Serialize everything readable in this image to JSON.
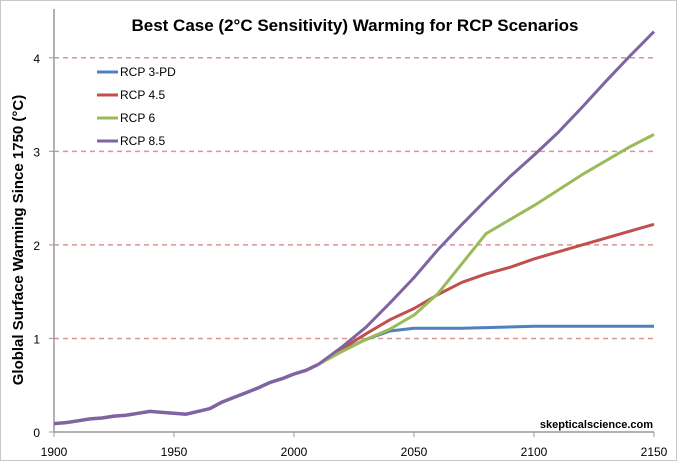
{
  "chart_data": {
    "type": "line",
    "title": "Best Case (2°C Sensitivity) Warming for RCP Scenarios",
    "xlabel": "",
    "ylabel": "Globlal Surface Warming Since 1750 (°C)",
    "xlim": [
      1900,
      2150
    ],
    "ylim": [
      0,
      4.5
    ],
    "xticks": [
      1900,
      1950,
      2000,
      2050,
      2100,
      2150
    ],
    "yticks": [
      0,
      1,
      2,
      3,
      4
    ],
    "grid": "horizontal dashed",
    "legend_placement": "top-left",
    "watermark": "skepticalscience.com",
    "historical": {
      "x": [
        1900,
        1905,
        1910,
        1915,
        1920,
        1925,
        1930,
        1935,
        1940,
        1945,
        1950,
        1955,
        1960,
        1965,
        1970,
        1975,
        1980,
        1985,
        1990,
        1995,
        2000,
        2005,
        2010
      ],
      "y": [
        0.09,
        0.1,
        0.12,
        0.14,
        0.15,
        0.17,
        0.18,
        0.2,
        0.22,
        0.21,
        0.2,
        0.19,
        0.22,
        0.25,
        0.32,
        0.37,
        0.42,
        0.47,
        0.53,
        0.57,
        0.62,
        0.66,
        0.72
      ]
    },
    "series": [
      {
        "name": "RCP 3-PD",
        "color": "#4f81bd",
        "x": [
          2010,
          2020,
          2030,
          2040,
          2050,
          2070,
          2100,
          2150
        ],
        "y": [
          0.72,
          0.87,
          0.99,
          1.08,
          1.11,
          1.11,
          1.13,
          1.13
        ]
      },
      {
        "name": "RCP 4.5",
        "color": "#c0504d",
        "x": [
          2010,
          2020,
          2030,
          2040,
          2050,
          2060,
          2070,
          2080,
          2090,
          2100,
          2120,
          2150
        ],
        "y": [
          0.72,
          0.89,
          1.05,
          1.2,
          1.32,
          1.47,
          1.6,
          1.69,
          1.76,
          1.85,
          2.0,
          2.22
        ]
      },
      {
        "name": "RCP 6",
        "color": "#9bbb59",
        "x": [
          2010,
          2020,
          2030,
          2040,
          2050,
          2060,
          2070,
          2080,
          2090,
          2100,
          2120,
          2140,
          2150
        ],
        "y": [
          0.72,
          0.86,
          0.99,
          1.1,
          1.25,
          1.48,
          1.8,
          2.12,
          2.27,
          2.42,
          2.75,
          3.05,
          3.18
        ]
      },
      {
        "name": "RCP 8.5",
        "color": "#8064a2",
        "x": [
          2010,
          2020,
          2030,
          2040,
          2050,
          2060,
          2070,
          2080,
          2090,
          2100,
          2110,
          2120,
          2130,
          2140,
          2150
        ],
        "y": [
          0.72,
          0.91,
          1.12,
          1.38,
          1.65,
          1.95,
          2.22,
          2.48,
          2.73,
          2.96,
          3.2,
          3.47,
          3.75,
          4.02,
          4.28
        ]
      }
    ],
    "gridline_color": "#d99694"
  }
}
